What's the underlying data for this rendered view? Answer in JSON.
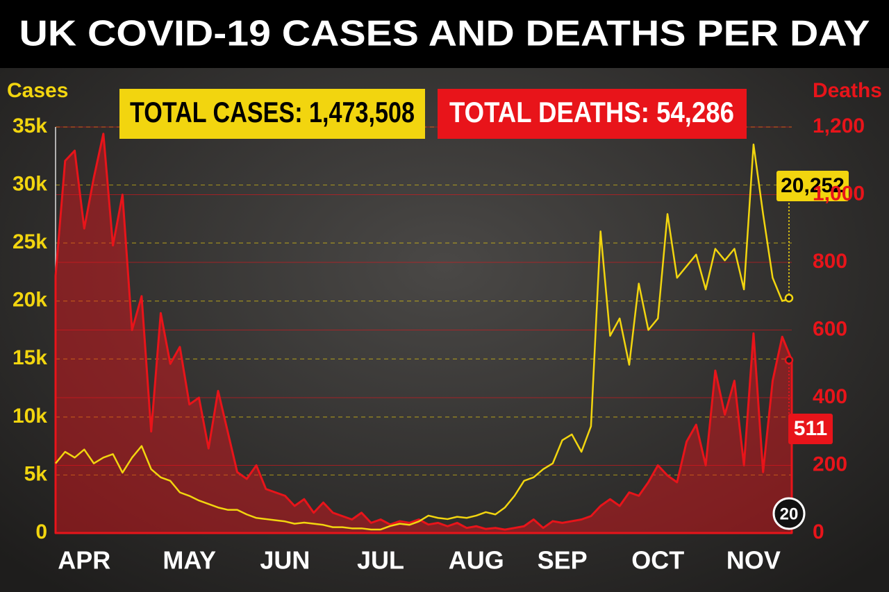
{
  "chart_data": {
    "type": "line",
    "title": "UK COVID-19 CASES AND DEATHS PER DAY",
    "categories": [
      null,
      null,
      null,
      "APR",
      null,
      null,
      null,
      null,
      null,
      null,
      null,
      null,
      null,
      null,
      "MAY",
      null,
      null,
      null,
      null,
      null,
      null,
      null,
      null,
      null,
      "JUN",
      null,
      null,
      null,
      null,
      null,
      null,
      null,
      null,
      null,
      "JUL",
      null,
      null,
      null,
      null,
      null,
      null,
      null,
      null,
      null,
      "AUG",
      null,
      null,
      null,
      null,
      null,
      null,
      null,
      null,
      "SEP",
      null,
      null,
      null,
      null,
      null,
      null,
      null,
      null,
      null,
      "OCT",
      null,
      null,
      null,
      null,
      null,
      null,
      null,
      null,
      null,
      "NOV",
      null,
      null,
      null,
      null
    ],
    "series": [
      {
        "name": "Cases",
        "color": "#f2d50f",
        "values": [
          6000,
          7000,
          6500,
          7200,
          6000,
          6500,
          6800,
          5200,
          6500,
          7500,
          5500,
          4800,
          4500,
          3500,
          3200,
          2800,
          2500,
          2200,
          2000,
          2000,
          1600,
          1300,
          1200,
          1100,
          1000,
          800,
          900,
          800,
          700,
          500,
          500,
          400,
          400,
          300,
          300,
          600,
          800,
          700,
          1000,
          1500,
          1300,
          1200,
          1400,
          1300,
          1500,
          1800,
          1600,
          2200,
          3200,
          4500,
          4800,
          5500,
          6000,
          8000,
          8500,
          7000,
          9200,
          26000,
          17000,
          18500,
          14500,
          21500,
          17500,
          18500,
          27500,
          22000,
          23000,
          24000,
          21000,
          24500,
          23500,
          24500,
          21000,
          33500,
          27500,
          22000,
          20000,
          20252
        ],
        "value_labels": [
          null,
          null,
          null,
          null,
          null,
          null,
          null,
          null,
          null,
          null,
          null,
          null,
          null,
          null,
          null,
          null,
          null,
          null,
          null,
          null,
          null,
          null,
          null,
          null,
          null,
          null,
          null,
          null,
          null,
          null,
          null,
          null,
          null,
          null,
          null,
          null,
          null,
          null,
          null,
          null,
          null,
          null,
          null,
          null,
          null,
          null,
          null,
          null,
          null,
          null,
          null,
          null,
          null,
          null,
          null,
          null,
          null,
          null,
          null,
          null,
          null,
          null,
          null,
          null,
          null,
          null,
          null,
          null,
          null,
          null,
          null,
          null,
          null,
          null,
          null,
          null,
          null,
          "20,252"
        ]
      },
      {
        "name": "Deaths",
        "color": "#e8141a",
        "axis": "y2",
        "area": true,
        "values": [
          760,
          1100,
          1130,
          900,
          1050,
          1180,
          850,
          1000,
          600,
          700,
          300,
          650,
          500,
          550,
          380,
          400,
          250,
          420,
          300,
          180,
          160,
          200,
          130,
          120,
          110,
          80,
          100,
          60,
          90,
          60,
          50,
          40,
          60,
          30,
          40,
          25,
          35,
          30,
          40,
          25,
          30,
          20,
          30,
          15,
          20,
          12,
          15,
          10,
          15,
          20,
          40,
          15,
          35,
          30,
          35,
          40,
          50,
          80,
          100,
          80,
          120,
          110,
          150,
          200,
          170,
          150,
          270,
          320,
          200,
          480,
          350,
          450,
          200,
          590,
          180,
          450,
          580,
          511
        ]
      }
    ],
    "ylim": [
      0,
      35000
    ],
    "yticks": [
      0,
      {
        "value": 5000,
        "label": "5k"
      },
      {
        "value": 10000,
        "label": "10k"
      },
      {
        "value": 15000,
        "label": "15k"
      },
      {
        "value": 20000,
        "label": "20k"
      },
      {
        "value": 25000,
        "label": "25k"
      },
      {
        "value": 30000,
        "label": "30k"
      },
      {
        "value": 35000,
        "label": "35k"
      }
    ],
    "y2lim": [
      0,
      1200
    ],
    "y2ticks": [
      0,
      200,
      400,
      600,
      800,
      {
        "value": 1000,
        "label": "1,000"
      },
      {
        "value": 1200,
        "label": "1,200"
      }
    ],
    "grid": true,
    "annotations": {
      "total_cases": "TOTAL CASES: 1,473,508",
      "total_deaths": "TOTAL DEATHS: 54,286",
      "date_marker": "20"
    }
  }
}
